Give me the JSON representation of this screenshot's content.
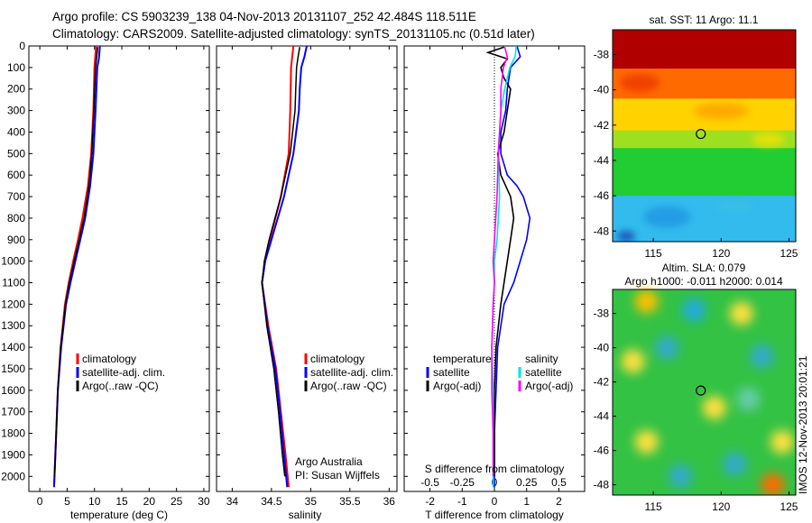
{
  "title": {
    "line1": "Argo profile: CS 5903239_138 04-Nov-2013 20131107_252 42.484S 118.511E",
    "line2": "Climatology: CARS2009. Satellite-adjusted climatology: synTS_20131105.nc (0.51d later)"
  },
  "colors": {
    "climatology": "#ff0000",
    "satellite": "#0000ff",
    "argo": "#000000",
    "sal_satellite": "#00e5e5",
    "sal_argo": "#ff00ff"
  },
  "chart_data": [
    {
      "id": "temperature",
      "type": "line",
      "xlabel": "temperature (deg C)",
      "ylabel": "",
      "xlim": [
        -2,
        31
      ],
      "ylim": [
        2070,
        0
      ],
      "xticks": [
        0,
        5,
        10,
        15,
        20,
        25,
        30
      ],
      "xtick_labels": [
        "0",
        "5",
        "10",
        "15",
        "20",
        "25",
        "30"
      ],
      "yticks": [
        0,
        100,
        200,
        300,
        400,
        500,
        600,
        700,
        800,
        900,
        1000,
        1100,
        1200,
        1300,
        1400,
        1500,
        1600,
        1700,
        1800,
        1900,
        2000
      ],
      "ytick_labels": [
        "0",
        "100",
        "200",
        "300",
        "400",
        "500",
        "600",
        "700",
        "800",
        "900",
        "1000",
        "1100",
        "1200",
        "1300",
        "1400",
        "1500",
        "1600",
        "1700",
        "1800",
        "1900",
        "2000"
      ],
      "legend": [
        "climatology",
        "satellite-adj. clim.",
        "Argo(..raw -QC)"
      ],
      "series": [
        {
          "name": "climatology",
          "depth": [
            0,
            100,
            300,
            500,
            650,
            800,
            900,
            1000,
            1100,
            1200,
            1400,
            1600,
            1800,
            2050
          ],
          "values": [
            10.3,
            10.0,
            9.8,
            9.4,
            8.8,
            7.8,
            7.0,
            6.1,
            5.3,
            4.6,
            3.8,
            3.3,
            3.0,
            2.6
          ]
        },
        {
          "name": "satellite-adj. clim.",
          "depth": [
            0,
            60,
            100,
            300,
            500,
            650,
            800,
            900,
            1000,
            1100,
            1200,
            1400,
            1600,
            1800,
            2050
          ],
          "values": [
            11.0,
            10.8,
            10.5,
            10.2,
            9.8,
            9.2,
            8.3,
            7.4,
            6.5,
            5.6,
            4.8,
            3.9,
            3.3,
            3.0,
            2.6
          ]
        },
        {
          "name": "Argo(..raw -QC)",
          "depth": [
            5,
            50,
            100,
            300,
            500,
            650,
            800,
            900,
            1000,
            1100,
            1200,
            1400,
            1600,
            1800,
            2000
          ],
          "values": [
            10.6,
            10.4,
            10.2,
            9.9,
            9.5,
            9.0,
            8.1,
            7.2,
            6.3,
            5.4,
            4.7,
            3.8,
            3.3,
            3.0,
            2.7
          ]
        }
      ]
    },
    {
      "id": "salinity",
      "type": "line",
      "xlabel": "salinity",
      "xlim": [
        33.8,
        36.1
      ],
      "ylim": [
        2070,
        0
      ],
      "xticks": [
        34,
        34.5,
        35,
        35.5,
        36
      ],
      "xtick_labels": [
        "34",
        "34.5",
        "35",
        "35.5",
        "36"
      ],
      "legend": [
        "climatology",
        "satellite-adj. clim.",
        "Argo(..raw -QC)"
      ],
      "annotation": [
        "Argo Australia",
        "PI: Susan Wijffels"
      ],
      "series": [
        {
          "name": "climatology",
          "depth": [
            0,
            100,
            300,
            500,
            700,
            900,
            1000,
            1100,
            1300,
            1500,
            1700,
            1900,
            2050
          ],
          "values": [
            34.78,
            34.75,
            34.74,
            34.72,
            34.62,
            34.48,
            34.42,
            34.38,
            34.46,
            34.56,
            34.62,
            34.68,
            34.72
          ]
        },
        {
          "name": "satellite-adj. clim.",
          "depth": [
            0,
            50,
            100,
            200,
            300,
            500,
            700,
            900,
            1000,
            1100,
            1300,
            1500,
            1700,
            1900,
            2050
          ],
          "values": [
            34.95,
            34.92,
            34.88,
            34.86,
            34.85,
            34.78,
            34.66,
            34.5,
            34.42,
            34.38,
            34.45,
            34.55,
            34.61,
            34.66,
            34.7
          ]
        },
        {
          "name": "Argo(..raw -QC)",
          "depth": [
            5,
            50,
            100,
            200,
            300,
            500,
            700,
            900,
            1000,
            1100,
            1300,
            1500,
            1700,
            1900,
            2000
          ],
          "values": [
            34.86,
            34.84,
            34.82,
            34.81,
            34.8,
            34.74,
            34.62,
            34.47,
            34.41,
            34.38,
            34.44,
            34.53,
            34.59,
            34.64,
            34.67
          ]
        }
      ]
    },
    {
      "id": "difference",
      "type": "line",
      "xlabel": "T difference from climatology",
      "xlabel_top": "S difference from climatology",
      "xlim": [
        -2.8,
        2.8
      ],
      "ylim": [
        2070,
        0
      ],
      "xticks": [
        -2,
        -1,
        0,
        1,
        2
      ],
      "xtick_labels": [
        "-2",
        "-1",
        "0",
        "1",
        "2"
      ],
      "xticks_salinity": [
        -0.5,
        -0.25,
        0,
        0.25,
        0.5
      ],
      "xtick_labels_salinity": [
        "-0.5",
        "-0.25",
        "0",
        "0.25",
        "0.5"
      ],
      "salinity_scale": 4,
      "legend_temperature": {
        "heading": "temperature",
        "items": [
          "satellite",
          "Argo(-adj)"
        ]
      },
      "legend_salinity": {
        "heading": "salinity",
        "items": [
          "satellite",
          "Argo(-adj)"
        ]
      },
      "series": [
        {
          "name": "temperature satellite",
          "depth": [
            0,
            50,
            100,
            200,
            300,
            400,
            500,
            600,
            650,
            700,
            800,
            900,
            1000,
            1100,
            1200,
            1400,
            1600,
            1800,
            2050
          ],
          "values": [
            0.7,
            0.8,
            0.5,
            0.4,
            0.35,
            0.2,
            0.2,
            0.4,
            0.7,
            0.9,
            1.1,
            1.0,
            0.8,
            0.6,
            0.3,
            0.1,
            0.05,
            0.0,
            0.0
          ]
        },
        {
          "name": "temperature Argo(-adj)",
          "depth": [
            5,
            30,
            60,
            100,
            150,
            200,
            300,
            400,
            500,
            600,
            700,
            800,
            900,
            1000,
            1100,
            1200,
            1400,
            1600,
            1800,
            2000
          ],
          "values": [
            0.3,
            -0.2,
            0.4,
            0.2,
            0.3,
            0.5,
            0.4,
            0.3,
            0.1,
            0.2,
            0.5,
            0.6,
            0.5,
            0.4,
            0.3,
            0.2,
            0.05,
            0.0,
            0.0,
            0.0
          ]
        },
        {
          "name": "salinity satellite",
          "depth": [
            0,
            50,
            100,
            200,
            300,
            500,
            700,
            900,
            1000,
            1100,
            1200,
            1400,
            1600,
            1800,
            2050
          ],
          "values": [
            0.17,
            0.16,
            0.12,
            0.08,
            0.05,
            0.03,
            0.04,
            0.02,
            0.0,
            0.0,
            -0.01,
            -0.02,
            -0.01,
            -0.01,
            -0.01
          ]
        },
        {
          "name": "salinity Argo(-adj)",
          "depth": [
            5,
            50,
            100,
            200,
            300,
            500,
            700,
            900,
            1000,
            1100,
            1200,
            1400,
            1600,
            1800,
            2000
          ],
          "values": [
            0.08,
            0.1,
            0.07,
            0.05,
            0.05,
            0.03,
            0.02,
            0.0,
            -0.01,
            0.0,
            -0.01,
            -0.02,
            -0.02,
            -0.01,
            -0.01
          ]
        }
      ]
    },
    {
      "id": "sst_map",
      "type": "heatmap",
      "title": "sat. SST: 11 Argo: 11.1",
      "xlim": [
        112,
        125.5
      ],
      "ylim": [
        -48.6,
        -36.6
      ],
      "xticks": [
        115,
        120,
        125
      ],
      "xtick_labels": [
        "115",
        "120",
        "125"
      ],
      "yticks": [
        -38,
        -40,
        -42,
        -44,
        -46,
        -48
      ],
      "ytick_labels": [
        "-38",
        "-40",
        "-42",
        "-44",
        "-46",
        "-48"
      ],
      "marker": {
        "lon": 118.5,
        "lat": -42.5
      },
      "bands": [
        {
          "lat_from": -36.6,
          "lat_to": -38.8,
          "color": "#b00000"
        },
        {
          "lat_from": -38.8,
          "lat_to": -40.5,
          "color": "#ff6a00"
        },
        {
          "lat_from": -40.5,
          "lat_to": -42.3,
          "color": "#ffd200"
        },
        {
          "lat_from": -42.3,
          "lat_to": -43.3,
          "color": "#9ee020"
        },
        {
          "lat_from": -43.3,
          "lat_to": -46.0,
          "color": "#22cc33"
        },
        {
          "lat_from": -46.0,
          "lat_to": -48.6,
          "color": "#33bbee"
        }
      ]
    },
    {
      "id": "sla_map",
      "type": "heatmap",
      "title": "Altim. SLA: 0.079",
      "subtitle": "Argo h1000: -0.011 h2000: 0.014",
      "xlim": [
        112,
        125.5
      ],
      "ylim": [
        -48.6,
        -36.6
      ],
      "xticks": [
        115,
        120,
        125
      ],
      "xtick_labels": [
        "115",
        "120",
        "125"
      ],
      "yticks": [
        -38,
        -40,
        -42,
        -44,
        -46,
        -48
      ],
      "ytick_labels": [
        "-38",
        "-40",
        "-42",
        "-44",
        "-46",
        "-48"
      ],
      "marker": {
        "lon": 118.5,
        "lat": -42.5
      },
      "base_color": "#33c244",
      "blobs": [
        {
          "lon": 114.5,
          "lat": -37.3,
          "color": "#ffc000"
        },
        {
          "lon": 118.0,
          "lat": -37.8,
          "color": "#22aadd"
        },
        {
          "lon": 121.5,
          "lat": -38.0,
          "color": "#ffe040"
        },
        {
          "lon": 113.5,
          "lat": -40.8,
          "color": "#ffe040"
        },
        {
          "lon": 116.0,
          "lat": -40.0,
          "color": "#33aacc"
        },
        {
          "lon": 123.0,
          "lat": -40.5,
          "color": "#33aacc"
        },
        {
          "lon": 119.5,
          "lat": -43.5,
          "color": "#ffe040"
        },
        {
          "lon": 122.0,
          "lat": -43.0,
          "color": "#66ccaa"
        },
        {
          "lon": 114.5,
          "lat": -45.5,
          "color": "#ffe040"
        },
        {
          "lon": 117.0,
          "lat": -47.5,
          "color": "#33aacc"
        },
        {
          "lon": 121.0,
          "lat": -46.8,
          "color": "#33aacc"
        },
        {
          "lon": 123.8,
          "lat": -48.0,
          "color": "#ff6a00"
        },
        {
          "lon": 124.5,
          "lat": -45.5,
          "color": "#ffe040"
        }
      ]
    }
  ],
  "footer": "IMOS 12-Nov-2013 20:01:21"
}
